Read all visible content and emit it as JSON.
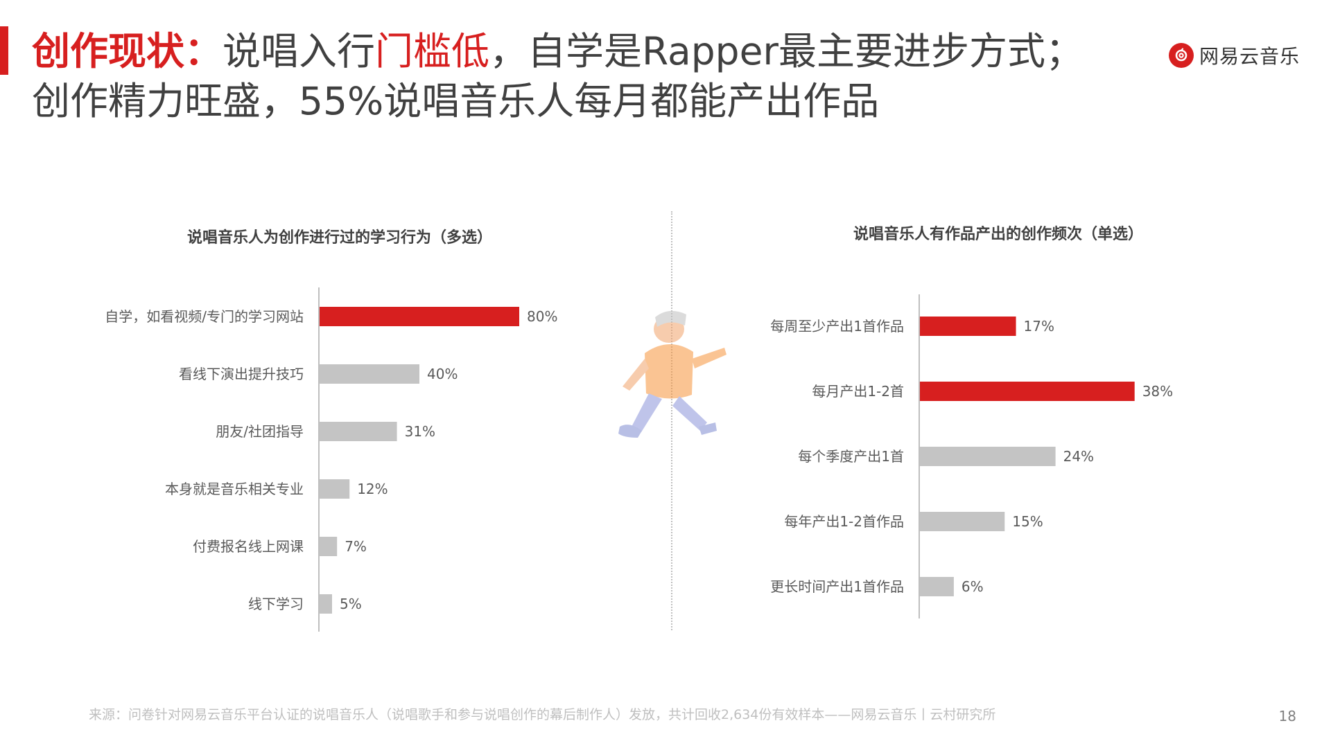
{
  "header": {
    "line1_keyword": "创作现状：",
    "line1_part1": "说唱入行",
    "line1_highlight": "门槛低",
    "line1_part2": "，自学是Rapper最主要进步方式；",
    "line2": "创作精力旺盛，55%说唱音乐人每月都能产出作品"
  },
  "brand": {
    "name": "网易云音乐",
    "logo_icon": "netease-music-logo-icon"
  },
  "colors": {
    "accent": "#D71F1F",
    "bar_gray": "#C4C4C4",
    "axis": "#BFBFBF"
  },
  "chart_data": [
    {
      "type": "bar",
      "orientation": "horizontal",
      "title": "说唱音乐人为创作进行过的学习行为（多选）",
      "categories": [
        "自学，如看视频/专门的学习网站",
        "看线下演出提升技巧",
        "朋友/社团指导",
        "本身就是音乐相关专业",
        "付费报名线上网课",
        "线下学习"
      ],
      "values": [
        80,
        40,
        31,
        12,
        7,
        5
      ],
      "labels": [
        "80%",
        "40%",
        "31%",
        "12%",
        "7%",
        "5%"
      ],
      "highlight": [
        true,
        false,
        false,
        false,
        false,
        false
      ],
      "xlim": [
        0,
        100
      ]
    },
    {
      "type": "bar",
      "orientation": "horizontal",
      "title": "说唱音乐人有作品产出的创作频次（单选）",
      "categories": [
        "每周至少产出1首作品",
        "每月产出1-2首",
        "每个季度产出1首",
        "每年产出1-2首作品",
        "更长时间产出1首作品"
      ],
      "values": [
        17,
        38,
        24,
        15,
        6
      ],
      "labels": [
        "17%",
        "38%",
        "24%",
        "15%",
        "6%"
      ],
      "highlight": [
        true,
        true,
        false,
        false,
        false
      ],
      "xlim": [
        0,
        50
      ]
    }
  ],
  "footer": {
    "source": "来源：问卷针对网易云音乐平台认证的说唱音乐人（说唱歌手和参与说唱创作的幕后制作人）发放，共计回收2,634份有效样本——网易云音乐丨云村研究所",
    "page_number": "18"
  }
}
